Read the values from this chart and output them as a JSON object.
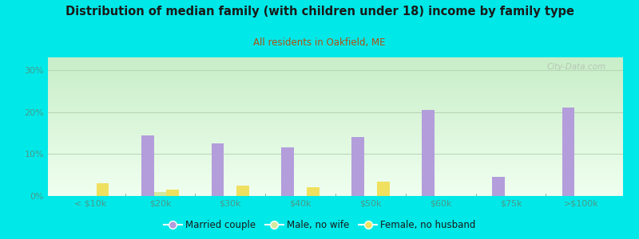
{
  "title": "Distribution of median family (with children under 18) income by family type",
  "subtitle": "All residents in Oakfield, ME",
  "categories": [
    "< $10k",
    "$20k",
    "$30k",
    "$40k",
    "$50k",
    "$60k",
    "$75k",
    ">$100k"
  ],
  "married_couple": [
    0,
    14.5,
    12.5,
    11.5,
    14.0,
    20.5,
    4.5,
    21.0
  ],
  "male_no_wife": [
    0,
    1.0,
    0,
    0,
    0,
    0,
    0,
    0
  ],
  "female_no_husb": [
    3.0,
    1.5,
    2.5,
    2.0,
    3.5,
    0,
    0,
    0
  ],
  "bar_width": 0.18,
  "ylim": [
    0,
    33
  ],
  "yticks": [
    0,
    10,
    20,
    30
  ],
  "yticklabels": [
    "0%",
    "10%",
    "20%",
    "30%"
  ],
  "married_color": "#b39ddb",
  "male_color": "#d4e8a0",
  "female_color": "#f0e060",
  "bg_color": "#00e8e8",
  "title_color": "#1a1a1a",
  "subtitle_color": "#b05010",
  "axis_color": "#4a9a8a",
  "grid_color": "#b8d8b8",
  "watermark": "City-Data.com",
  "legend_labels": [
    "Married couple",
    "Male, no wife",
    "Female, no husband"
  ]
}
